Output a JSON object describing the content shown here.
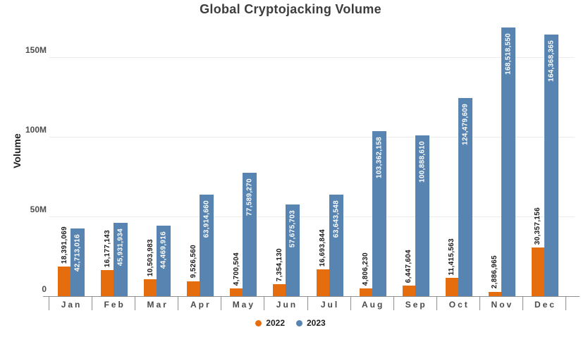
{
  "chart_data": {
    "type": "bar",
    "title": "Global Cryptojacking Volume",
    "xlabel": "",
    "ylabel": "Volume",
    "categories": [
      "Jan",
      "Feb",
      "Mar",
      "Apr",
      "May",
      "Jun",
      "Jul",
      "Aug",
      "Sep",
      "Oct",
      "Nov",
      "Dec"
    ],
    "series": [
      {
        "name": "2022",
        "color": "#e66d0d",
        "values": [
          18391069,
          16177143,
          10503983,
          9526560,
          4700504,
          7354130,
          16693844,
          4806230,
          6447604,
          11415563,
          2886965,
          30357156
        ]
      },
      {
        "name": "2023",
        "color": "#5784b1",
        "values": [
          42713016,
          45931934,
          44469916,
          63914660,
          77589270,
          57675703,
          63643548,
          103362158,
          100888610,
          124479609,
          168518550,
          164368365
        ]
      }
    ],
    "value_label_rotation_deg": 90,
    "y_ticks": [
      "0",
      "50M",
      "100M",
      "150M"
    ],
    "y_tick_values": [
      0,
      50000000,
      100000000,
      150000000
    ],
    "ylim": [
      0,
      185000000
    ],
    "grid": true,
    "legend_position": "bottom"
  }
}
